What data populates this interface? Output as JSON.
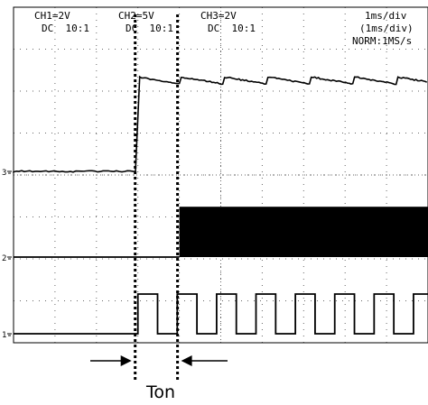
{
  "channels": [
    {
      "label": "CH1=2V",
      "coupling": "DC  10:1"
    },
    {
      "label": "CH2=5V",
      "coupling": "DC  10:1"
    },
    {
      "label": "CH3=2V",
      "coupling": "DC  10:1"
    }
  ],
  "timebase": {
    "primary": "1ms/div",
    "secondary": "(1ms/div)",
    "mode": "NORM:1MS/s"
  },
  "ground_markers": [
    "3",
    "2",
    "1"
  ],
  "ton_label": "Ton",
  "chart_data": {
    "type": "line",
    "time_units_per_div": "1ms/div",
    "x_range_div": [
      0,
      10
    ],
    "grid": true,
    "series": [
      {
        "name": "CH2",
        "description_values": {
          "off_level_div": 0,
          "on_level_div": 2.5,
          "step_time_div": 3.0,
          "ripple": true
        }
      },
      {
        "name": "CH3",
        "description_values": {
          "off_level_div": 0,
          "switching_start_div": 4.0,
          "switching_band_div": 1.2
        }
      },
      {
        "name": "CH1",
        "description_values": {
          "low_level_div": 0,
          "high_level_div": 1.0,
          "first_rise_div": 3.0,
          "period_div": 0.95,
          "duty": 0.5
        }
      }
    ],
    "ton_interval_div": [
      3.0,
      4.0
    ]
  }
}
